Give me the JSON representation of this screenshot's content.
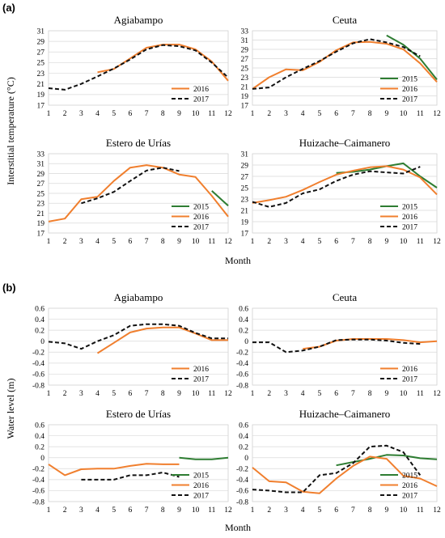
{
  "figure": {
    "panel_labels": [
      "(a)",
      "(b)"
    ],
    "xlabel": "Month",
    "ylabels": [
      "Interstitial temperature (°C)",
      "Water level (m)"
    ]
  },
  "colors": {
    "2015": "#2e7d32",
    "2016": "#f07f2e",
    "2017": "#111111"
  },
  "chart_data": [
    {
      "type": "line",
      "group": "a",
      "title": "Agiabampo",
      "x": [
        1,
        2,
        3,
        4,
        5,
        6,
        7,
        8,
        9,
        10,
        11,
        12
      ],
      "ylim": [
        17,
        31
      ],
      "yticks": [
        17,
        19,
        21,
        23,
        25,
        27,
        29,
        31
      ],
      "series": [
        {
          "name": "2016",
          "values": [
            null,
            null,
            null,
            23.2,
            23.8,
            25.8,
            27.8,
            28.4,
            28.4,
            27.5,
            25.2,
            21.6
          ]
        },
        {
          "name": "2017",
          "values": [
            20.2,
            19.9,
            21.0,
            22.4,
            23.9,
            25.6,
            27.5,
            28.3,
            28.1,
            27.3,
            25.0,
            22.2
          ]
        }
      ],
      "legend": "bottom-right"
    },
    {
      "type": "line",
      "group": "a",
      "title": "Ceuta",
      "x": [
        1,
        2,
        3,
        4,
        5,
        6,
        7,
        8,
        9,
        10,
        11,
        12
      ],
      "ylim": [
        17,
        33
      ],
      "yticks": [
        17,
        19,
        21,
        23,
        25,
        27,
        29,
        31,
        33
      ],
      "series": [
        {
          "name": "2015",
          "values": [
            null,
            null,
            null,
            null,
            null,
            null,
            null,
            null,
            32.0,
            30.0,
            27.0,
            22.5
          ]
        },
        {
          "name": "2016",
          "values": [
            20.5,
            23.0,
            24.7,
            24.5,
            26.3,
            28.8,
            30.5,
            30.6,
            30.2,
            29.0,
            26.0,
            22.0
          ]
        },
        {
          "name": "2017",
          "values": [
            20.5,
            20.8,
            23.0,
            24.8,
            26.5,
            28.5,
            30.3,
            31.2,
            30.5,
            29.5,
            27.5,
            null
          ]
        }
      ],
      "legend": "bottom-right"
    },
    {
      "type": "line",
      "group": "a",
      "title": "Estero de Urías",
      "x": [
        1,
        2,
        3,
        4,
        5,
        6,
        7,
        8,
        9,
        10,
        11,
        12
      ],
      "ylim": [
        17,
        33
      ],
      "yticks": [
        17,
        19,
        21,
        23,
        25,
        27,
        29,
        31,
        33
      ],
      "series": [
        {
          "name": "2015",
          "values": [
            null,
            null,
            null,
            null,
            null,
            null,
            null,
            null,
            null,
            null,
            25.5,
            22.5
          ]
        },
        {
          "name": "2016",
          "values": [
            19.3,
            19.9,
            23.8,
            24.3,
            27.5,
            30.2,
            30.7,
            30.2,
            28.8,
            28.3,
            24.5,
            20.3
          ]
        },
        {
          "name": "2017",
          "values": [
            null,
            null,
            23.0,
            24.0,
            25.3,
            27.5,
            29.6,
            30.2,
            29.5,
            null,
            null,
            null
          ]
        }
      ],
      "legend": "bottom-right"
    },
    {
      "type": "line",
      "group": "a",
      "title": "Huizache–Caimanero",
      "x": [
        1,
        2,
        3,
        4,
        5,
        6,
        7,
        8,
        9,
        10,
        11,
        12
      ],
      "ylim": [
        17,
        31
      ],
      "yticks": [
        17,
        19,
        21,
        23,
        25,
        27,
        29,
        31
      ],
      "series": [
        {
          "name": "2015",
          "values": [
            null,
            null,
            null,
            null,
            null,
            27.6,
            27.8,
            28.2,
            28.8,
            29.3,
            27.0,
            25.0
          ]
        },
        {
          "name": "2016",
          "values": [
            22.3,
            22.8,
            23.4,
            24.6,
            26.0,
            27.3,
            28.0,
            28.6,
            28.8,
            28.2,
            26.8,
            23.8
          ]
        },
        {
          "name": "2017",
          "values": [
            22.5,
            21.6,
            22.3,
            24.0,
            24.7,
            26.2,
            27.3,
            27.9,
            27.7,
            27.5,
            28.7,
            null
          ]
        }
      ],
      "legend": "bottom-right"
    },
    {
      "type": "line",
      "group": "b",
      "title": "Agiabampo",
      "x": [
        1,
        2,
        3,
        4,
        5,
        6,
        7,
        8,
        9,
        10,
        11,
        12
      ],
      "ylim": [
        -0.8,
        0.6
      ],
      "yticks": [
        -0.8,
        -0.6,
        -0.4,
        -0.2,
        0,
        0.2,
        0.4,
        0.6
      ],
      "series": [
        {
          "name": "2016",
          "values": [
            null,
            null,
            null,
            -0.22,
            -0.03,
            0.16,
            0.23,
            0.25,
            0.25,
            0.14,
            0.02,
            0.02
          ]
        },
        {
          "name": "2017",
          "values": [
            -0.01,
            -0.04,
            -0.14,
            0.0,
            0.11,
            0.28,
            0.31,
            0.31,
            0.28,
            0.15,
            0.05,
            0.05
          ]
        }
      ],
      "legend": "bottom-right"
    },
    {
      "type": "line",
      "group": "b",
      "title": "Ceuta",
      "x": [
        1,
        2,
        3,
        4,
        5,
        6,
        7,
        8,
        9,
        10,
        11,
        12
      ],
      "ylim": [
        -0.8,
        0.6
      ],
      "yticks": [
        -0.8,
        -0.6,
        -0.4,
        -0.2,
        0,
        0.2,
        0.4,
        0.6
      ],
      "series": [
        {
          "name": "2016",
          "values": [
            null,
            null,
            null,
            -0.14,
            -0.1,
            0.01,
            0.04,
            0.04,
            0.04,
            0.02,
            -0.02,
            0.0
          ]
        },
        {
          "name": "2017",
          "values": [
            -0.02,
            -0.02,
            -0.2,
            -0.17,
            -0.1,
            0.02,
            0.03,
            0.03,
            0.01,
            -0.03,
            -0.05,
            null
          ]
        }
      ],
      "legend": "bottom-right"
    },
    {
      "type": "line",
      "group": "b",
      "title": "Estero de Urías",
      "x": [
        1,
        2,
        3,
        4,
        5,
        6,
        7,
        8,
        9,
        10,
        11,
        12
      ],
      "ylim": [
        -0.8,
        0.6
      ],
      "yticks": [
        -0.8,
        -0.6,
        -0.4,
        -0.2,
        0,
        0.2,
        0.4,
        0.6
      ],
      "series": [
        {
          "name": "2015",
          "values": [
            null,
            null,
            null,
            null,
            null,
            null,
            null,
            null,
            0.0,
            -0.03,
            -0.03,
            0.0
          ]
        },
        {
          "name": "2016",
          "values": [
            -0.12,
            -0.32,
            -0.21,
            -0.2,
            -0.2,
            -0.15,
            -0.11,
            -0.12,
            -0.12,
            null,
            null,
            null
          ]
        },
        {
          "name": "2017",
          "values": [
            null,
            null,
            -0.4,
            -0.4,
            -0.4,
            -0.32,
            -0.32,
            -0.27,
            -0.35,
            null,
            null,
            null
          ]
        }
      ],
      "legend": "bottom-right"
    },
    {
      "type": "line",
      "group": "b",
      "title": "Huizache–Caimanero",
      "x": [
        1,
        2,
        3,
        4,
        5,
        6,
        7,
        8,
        9,
        10,
        11,
        12
      ],
      "ylim": [
        -0.8,
        0.6
      ],
      "yticks": [
        -0.8,
        -0.6,
        -0.4,
        -0.2,
        0,
        0.2,
        0.4,
        0.6
      ],
      "series": [
        {
          "name": "2015",
          "values": [
            null,
            null,
            null,
            null,
            null,
            -0.14,
            -0.08,
            -0.02,
            0.05,
            0.04,
            -0.01,
            -0.03
          ]
        },
        {
          "name": "2016",
          "values": [
            -0.18,
            -0.43,
            -0.45,
            -0.62,
            -0.65,
            -0.38,
            -0.15,
            0.02,
            -0.02,
            -0.33,
            -0.38,
            -0.52
          ]
        },
        {
          "name": "2017",
          "values": [
            -0.58,
            -0.6,
            -0.63,
            -0.63,
            -0.32,
            -0.28,
            -0.1,
            0.2,
            0.22,
            0.1,
            -0.32,
            null
          ]
        }
      ],
      "legend": "bottom-right"
    }
  ]
}
